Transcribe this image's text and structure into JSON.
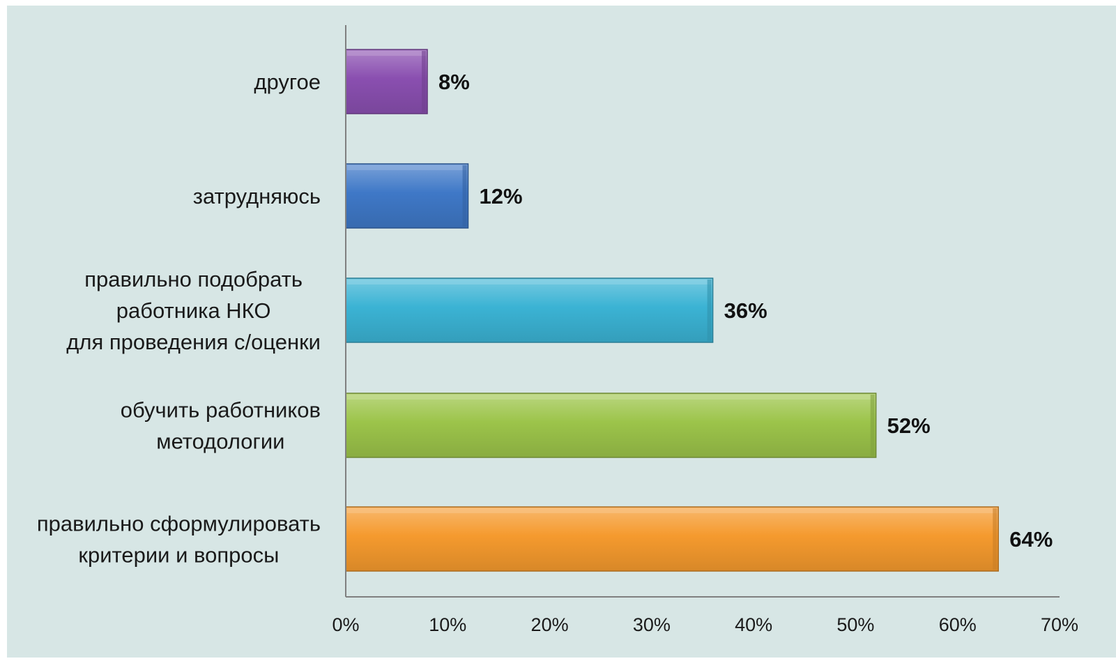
{
  "colors": {
    "background": "#d7e6e5",
    "axis": "#7f7f7f"
  },
  "chart_data": {
    "type": "bar",
    "orientation": "horizontal",
    "title": "",
    "xlabel": "",
    "ylabel": "",
    "xlim": [
      0,
      70
    ],
    "x_ticks": [
      "0%",
      "10%",
      "20%",
      "30%",
      "40%",
      "50%",
      "60%",
      "70%"
    ],
    "grid": false,
    "legend": "none",
    "categories": [
      {
        "label_lines": [
          "другое"
        ],
        "value": 8,
        "value_label": "8%",
        "color": "#8a4fb0",
        "icon": "bar-purple"
      },
      {
        "label_lines": [
          "затрудняюсь"
        ],
        "value": 12,
        "value_label": "12%",
        "color": "#3f78c7",
        "icon": "bar-blue"
      },
      {
        "label_lines": [
          "правильно подобрать",
          "работника НКО",
          "для проведения с/оценки"
        ],
        "value": 36,
        "value_label": "36%",
        "color": "#3bb3d4",
        "icon": "bar-cyan"
      },
      {
        "label_lines": [
          "обучить работников",
          "методологии"
        ],
        "value": 52,
        "value_label": "52%",
        "color": "#9cc44a",
        "icon": "bar-green"
      },
      {
        "label_lines": [
          "правильно сформулировать",
          "критерии и вопросы"
        ],
        "value": 64,
        "value_label": "64%",
        "color": "#f59a2e",
        "icon": "bar-orange"
      }
    ]
  }
}
